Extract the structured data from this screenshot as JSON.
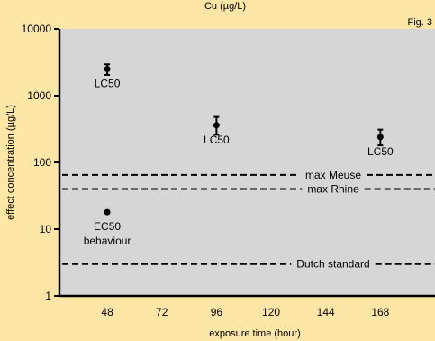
{
  "chart_data": {
    "type": "scatter",
    "title": "Cu (µg/L)",
    "figure_label": "Fig. 3",
    "xlabel": "exposure time (hour)",
    "ylabel": "effect concentration (µg/L)",
    "x_ticks": [
      48,
      72,
      96,
      120,
      144,
      168
    ],
    "y_ticks": [
      1,
      10,
      100,
      1000,
      10000
    ],
    "y_scale": "log",
    "xlim": [
      27,
      192
    ],
    "ylim": [
      1,
      10000
    ],
    "grid": false,
    "colors": {
      "background": "#fee6a6",
      "plot_area": "#d6d6d6",
      "marks": "#000000"
    },
    "series": [
      {
        "points": [
          {
            "x": 48,
            "y": 2500,
            "err_low": 2050,
            "err_high": 2950,
            "label": "LC50"
          },
          {
            "x": 96,
            "y": 360,
            "err_low": 260,
            "err_high": 480,
            "label": "LC50"
          },
          {
            "x": 168,
            "y": 240,
            "err_low": 180,
            "err_high": 310,
            "label": "LC50"
          },
          {
            "x": 48,
            "y": 18,
            "label": "EC50 behaviour"
          }
        ]
      }
    ],
    "reference_lines": [
      {
        "y": 65,
        "label": "max Meuse"
      },
      {
        "y": 40,
        "label": "max Rhine"
      },
      {
        "y": 3,
        "label": "Dutch standard"
      }
    ]
  }
}
